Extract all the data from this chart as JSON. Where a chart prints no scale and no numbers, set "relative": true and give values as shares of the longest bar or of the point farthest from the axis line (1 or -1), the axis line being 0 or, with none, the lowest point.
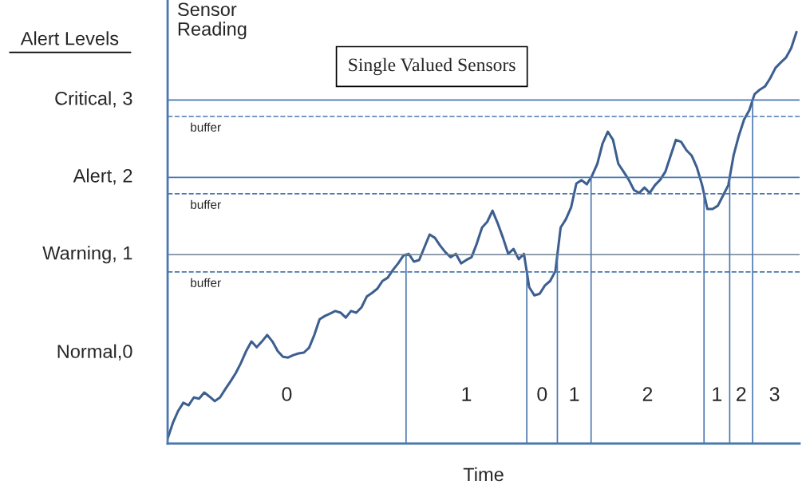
{
  "chart_data": {
    "type": "line",
    "relative": true,
    "title": "Single Valued Sensors",
    "xlabel": "Time",
    "ylabel": "Sensor Reading",
    "categories": [
      null,
      null,
      null,
      null,
      null,
      null,
      null,
      null,
      null,
      null,
      null,
      null,
      null,
      null,
      null,
      null,
      null,
      null,
      null,
      null,
      null,
      null,
      null,
      null,
      null,
      null,
      null,
      null,
      null,
      null,
      null,
      null,
      null,
      null,
      null,
      null,
      null,
      null,
      null,
      null,
      null,
      null,
      null,
      null,
      null,
      null,
      null,
      null,
      null,
      null,
      null,
      null,
      null,
      null,
      null,
      null,
      null,
      null,
      null,
      null,
      null,
      null,
      null,
      null,
      null,
      null,
      null,
      null,
      null,
      null,
      null,
      null,
      null,
      null,
      null,
      null,
      null,
      null,
      null,
      null,
      null,
      null,
      null,
      null,
      null,
      null,
      null,
      null,
      null,
      null,
      null,
      null,
      null,
      null,
      null,
      null,
      null,
      null,
      null,
      null,
      null,
      null,
      null,
      null,
      null,
      null,
      null,
      null,
      null,
      null,
      null,
      null,
      null,
      null,
      null,
      null,
      null,
      null,
      null,
      null,
      null
    ],
    "series": [
      {
        "color": "#3d5f8f",
        "line_style": "solid",
        "marker": "none",
        "values": [
          0.012,
          0.05,
          0.079,
          0.099,
          0.093,
          0.112,
          0.109,
          0.124,
          0.114,
          0.103,
          0.112,
          0.132,
          0.151,
          0.171,
          0.196,
          0.225,
          0.248,
          0.234,
          0.248,
          0.264,
          0.248,
          0.225,
          0.211,
          0.209,
          0.215,
          0.219,
          0.221,
          0.233,
          0.264,
          0.302,
          0.31,
          0.316,
          0.322,
          0.318,
          0.306,
          0.322,
          0.318,
          0.331,
          0.357,
          0.366,
          0.376,
          0.395,
          0.403,
          0.422,
          0.438,
          0.457,
          0.461,
          0.442,
          0.446,
          0.477,
          0.508,
          0.5,
          0.481,
          0.465,
          0.453,
          0.461,
          0.438,
          0.446,
          0.453,
          0.486,
          0.525,
          0.539,
          0.566,
          0.535,
          0.5,
          0.461,
          0.473,
          0.448,
          0.461,
          0.38,
          0.36,
          0.364,
          0.384,
          0.395,
          0.419,
          0.525,
          0.545,
          0.574,
          0.632,
          0.64,
          0.63,
          0.651,
          0.68,
          0.729,
          0.758,
          0.738,
          0.68,
          0.661,
          0.641,
          0.616,
          0.609,
          0.622,
          0.609,
          0.628,
          0.641,
          0.661,
          0.7,
          0.738,
          0.733,
          0.713,
          0.7,
          0.671,
          0.628,
          0.57,
          0.57,
          0.578,
          0.603,
          0.628,
          0.7,
          0.748,
          0.787,
          0.81,
          0.849,
          0.86,
          0.868,
          0.888,
          0.913,
          0.926,
          0.938,
          0.961,
          1.0
        ]
      }
    ],
    "ref_lines": [
      {
        "axis": "y",
        "value": 0.835,
        "label": "Critical, 3",
        "color": "#4a78b0",
        "line_style": "solid"
      },
      {
        "axis": "y",
        "value": 0.795,
        "label": "buffer",
        "color": "#4a78b0",
        "line_style": "dashed"
      },
      {
        "axis": "y",
        "value": 0.647,
        "label": "Alert, 2",
        "color": "#4a78b0",
        "line_style": "solid"
      },
      {
        "axis": "y",
        "value": 0.607,
        "label": "buffer",
        "color": "#4a78b0",
        "line_style": "dashed"
      },
      {
        "axis": "y",
        "value": 0.459,
        "label": "Warning, 1",
        "color": "#6f7f90",
        "line_style": "solid"
      },
      {
        "axis": "y",
        "value": 0.417,
        "label": "buffer",
        "color": "#4a78b0",
        "line_style": "dashed"
      }
    ],
    "annotations": [
      "Alert Levels",
      "Normal,0",
      "0",
      "1",
      "0",
      "1",
      "2",
      "1",
      "2",
      "3"
    ]
  }
}
